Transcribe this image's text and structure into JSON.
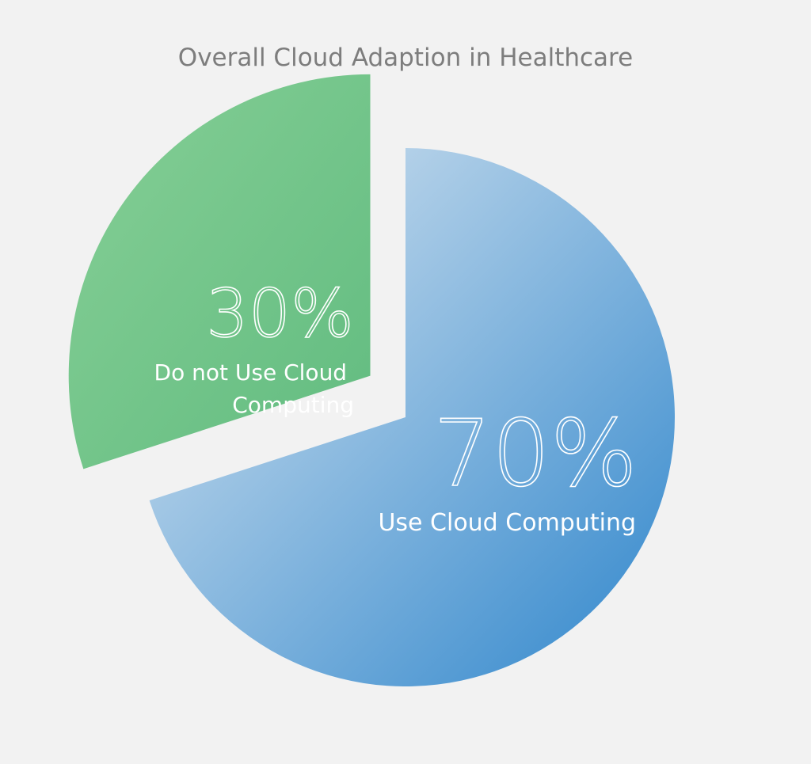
{
  "chart_data": {
    "type": "pie",
    "title": "Overall Cloud Adaption in Healthcare",
    "slices": [
      {
        "value": 70,
        "percent_label": "70%",
        "label_lines": [
          "Use Cloud Computing"
        ],
        "color_start": "#dde8f1",
        "color_end": "#2f86cc"
      },
      {
        "value": 30,
        "percent_label": "30%",
        "label_lines": [
          "Do not Use Cloud",
          "Computing"
        ],
        "color_start": "#7dcc8e",
        "color_end": "#55b776",
        "exploded": true
      }
    ]
  }
}
